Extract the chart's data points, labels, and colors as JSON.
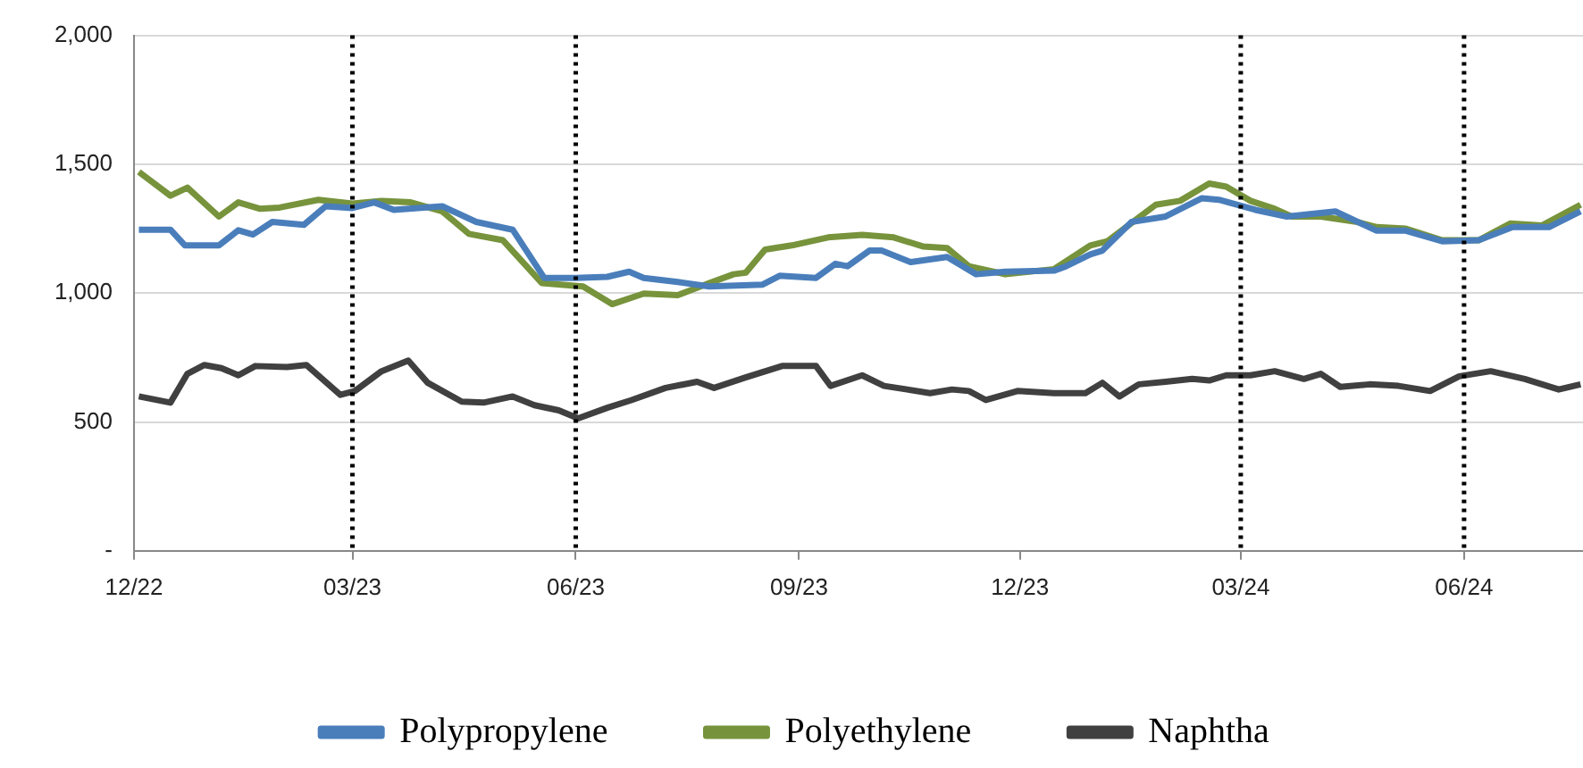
{
  "chart_data": {
    "type": "line",
    "xlim": [
      "2022-12-01",
      "2024-07-20"
    ],
    "xticks": [
      {
        "value": "2022-12-01",
        "label": "12/22"
      },
      {
        "value": "2023-03-01",
        "label": "03/23"
      },
      {
        "value": "2023-06-01",
        "label": "06/23"
      },
      {
        "value": "2023-09-01",
        "label": "09/23"
      },
      {
        "value": "2023-12-01",
        "label": "12/23"
      },
      {
        "value": "2024-03-01",
        "label": "03/24"
      },
      {
        "value": "2024-06-01",
        "label": "06/24"
      }
    ],
    "ylim": [
      0,
      2000
    ],
    "yticks": [
      {
        "value": 0,
        "label": "-"
      },
      {
        "value": 500,
        "label": "500"
      },
      {
        "value": 1000,
        "label": "1,000"
      },
      {
        "value": 1500,
        "label": "1,500"
      },
      {
        "value": 2000,
        "label": "2,000"
      }
    ],
    "grid": "y",
    "legend": "bottom",
    "marker": "none",
    "line_style": "solid",
    "ref_lines": [
      {
        "axis": "x",
        "value": "2023-03-01",
        "color": "#000000",
        "line_style": "dotted"
      },
      {
        "axis": "x",
        "value": "2023-06-01",
        "color": "#000000",
        "line_style": "dotted"
      },
      {
        "axis": "x",
        "value": "2024-03-01",
        "color": "#000000",
        "line_style": "dotted"
      },
      {
        "axis": "x",
        "value": "2024-06-01",
        "color": "#000000",
        "line_style": "dotted"
      }
    ],
    "series": [
      {
        "name": "Polypropylene",
        "color": "#4a7ebb",
        "x": [
          "2022-12-03",
          "2022-12-16",
          "2022-12-22",
          "2023-01-05",
          "2023-01-13",
          "2023-01-19",
          "2023-01-27",
          "2023-02-09",
          "2023-02-18",
          "2023-03-01",
          "2023-03-10",
          "2023-03-18",
          "2023-04-07",
          "2023-04-21",
          "2023-05-06",
          "2023-05-19",
          "2023-06-01",
          "2023-06-14",
          "2023-06-23",
          "2023-06-29",
          "2023-07-13",
          "2023-07-26",
          "2023-08-17",
          "2023-08-24",
          "2023-09-08",
          "2023-09-16",
          "2023-09-21",
          "2023-09-30",
          "2023-10-05",
          "2023-10-17",
          "2023-11-01",
          "2023-11-13",
          "2023-11-25",
          "2023-12-15",
          "2023-12-20",
          "2023-12-30",
          "2024-01-04",
          "2024-01-16",
          "2024-01-30",
          "2024-02-14",
          "2024-02-21",
          "2024-03-07",
          "2024-03-20",
          "2024-04-09",
          "2024-04-26",
          "2024-05-08",
          "2024-05-23",
          "2024-06-07",
          "2024-06-21",
          "2024-07-06",
          "2024-07-19"
        ],
        "values": [
          1246,
          1246,
          1185,
          1185,
          1244,
          1227,
          1276,
          1265,
          1337,
          1330,
          1352,
          1323,
          1337,
          1276,
          1246,
          1059,
          1059,
          1063,
          1083,
          1059,
          1043,
          1026,
          1033,
          1067,
          1059,
          1114,
          1104,
          1165,
          1165,
          1120,
          1140,
          1073,
          1083,
          1087,
          1104,
          1150,
          1165,
          1276,
          1297,
          1368,
          1362,
          1323,
          1297,
          1317,
          1242,
          1242,
          1201,
          1205,
          1256,
          1256,
          1317
        ]
      },
      {
        "name": "Polyethylene",
        "color": "#77933c",
        "x": [
          "2022-12-03",
          "2022-12-16",
          "2022-12-23",
          "2023-01-05",
          "2023-01-13",
          "2023-01-22",
          "2023-01-30",
          "2023-02-15",
          "2023-03-01",
          "2023-03-13",
          "2023-03-25",
          "2023-04-07",
          "2023-04-18",
          "2023-05-02",
          "2023-05-18",
          "2023-06-04",
          "2023-06-16",
          "2023-06-29",
          "2023-07-13",
          "2023-07-26",
          "2023-08-05",
          "2023-08-10",
          "2023-08-18",
          "2023-08-29",
          "2023-09-13",
          "2023-09-27",
          "2023-10-10",
          "2023-10-22",
          "2023-11-01",
          "2023-11-10",
          "2023-11-25",
          "2023-12-15",
          "2023-12-30",
          "2024-01-06",
          "2024-01-26",
          "2024-02-05",
          "2024-02-17",
          "2024-02-24",
          "2024-03-05",
          "2024-03-15",
          "2024-03-22",
          "2024-04-03",
          "2024-04-18",
          "2024-04-26",
          "2024-05-08",
          "2024-05-23",
          "2024-06-07",
          "2024-06-20",
          "2024-07-03",
          "2024-07-19"
        ],
        "values": [
          1470,
          1378,
          1409,
          1297,
          1352,
          1327,
          1332,
          1362,
          1347,
          1358,
          1352,
          1317,
          1230,
          1205,
          1039,
          1026,
          957,
          998,
          992,
          1039,
          1073,
          1079,
          1169,
          1185,
          1216,
          1226,
          1216,
          1181,
          1175,
          1104,
          1073,
          1093,
          1185,
          1201,
          1343,
          1358,
          1425,
          1413,
          1358,
          1327,
          1297,
          1297,
          1276,
          1256,
          1250,
          1205,
          1205,
          1270,
          1262,
          1343
        ]
      },
      {
        "name": "Naphtha",
        "color": "#404040",
        "x": [
          "2022-12-03",
          "2022-12-16",
          "2022-12-23",
          "2022-12-30",
          "2023-01-06",
          "2023-01-13",
          "2023-01-20",
          "2023-02-02",
          "2023-02-10",
          "2023-02-24",
          "2023-03-02",
          "2023-03-13",
          "2023-03-24",
          "2023-04-01",
          "2023-04-15",
          "2023-04-24",
          "2023-05-06",
          "2023-05-15",
          "2023-05-25",
          "2023-06-02",
          "2023-06-14",
          "2023-06-24",
          "2023-07-08",
          "2023-07-21",
          "2023-07-28",
          "2023-08-10",
          "2023-08-25",
          "2023-09-08",
          "2023-09-14",
          "2023-09-27",
          "2023-10-06",
          "2023-10-25",
          "2023-11-03",
          "2023-11-10",
          "2023-11-17",
          "2023-11-30",
          "2023-12-15",
          "2023-12-28",
          "2024-01-04",
          "2024-01-11",
          "2024-01-19",
          "2024-01-30",
          "2024-02-10",
          "2024-02-17",
          "2024-02-24",
          "2024-03-05",
          "2024-03-15",
          "2024-03-27",
          "2024-04-03",
          "2024-04-11",
          "2024-04-23",
          "2024-05-05",
          "2024-05-18",
          "2024-05-30",
          "2024-06-12",
          "2024-06-26",
          "2024-07-10",
          "2024-07-19"
        ],
        "values": [
          599,
          575,
          687,
          721,
          709,
          681,
          717,
          713,
          721,
          605,
          620,
          697,
          738,
          652,
          579,
          575,
          599,
          565,
          545,
          514,
          555,
          585,
          632,
          656,
          632,
          673,
          717,
          717,
          640,
          681,
          640,
          612,
          626,
          620,
          585,
          620,
          612,
          612,
          652,
          599,
          646,
          656,
          667,
          661,
          681,
          681,
          697,
          667,
          687,
          636,
          646,
          640,
          620,
          677,
          697,
          667,
          626,
          646
        ]
      }
    ]
  }
}
